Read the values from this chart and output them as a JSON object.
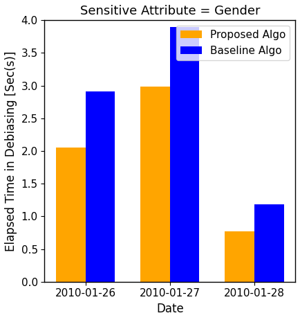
{
  "title": "Sensitive Attribute = Gender",
  "xlabel": "Date",
  "ylabel": "Elapsed Time in Debiasing [Sec(s)]",
  "categories": [
    "2010-01-26",
    "2010-01-27",
    "2010-01-28"
  ],
  "proposed_values": [
    2.05,
    2.99,
    0.77
  ],
  "baseline_values": [
    2.91,
    3.9,
    1.18
  ],
  "proposed_color": "#FFA500",
  "baseline_color": "#0000FF",
  "proposed_label": "Proposed Algo",
  "baseline_label": "Baseline Algo",
  "ylim": [
    0.0,
    4.0
  ],
  "yticks": [
    0.0,
    0.5,
    1.0,
    1.5,
    2.0,
    2.5,
    3.0,
    3.5,
    4.0
  ],
  "bar_width": 0.35,
  "background_color": "#ffffff",
  "title_fontsize": 13,
  "axis_fontsize": 12,
  "tick_fontsize": 11,
  "legend_fontsize": 11
}
